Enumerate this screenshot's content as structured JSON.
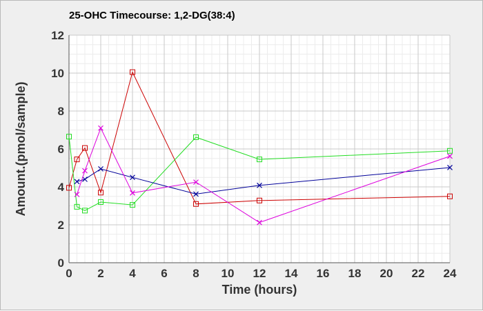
{
  "chart_data": {
    "type": "line",
    "title": "25-OHC Timecourse: 1,2-DG(38:4)",
    "xlabel": "Time (hours)",
    "ylabel": "Amount.(pmol/sample)",
    "xlim": [
      0,
      24
    ],
    "ylim": [
      0,
      12
    ],
    "x_ticks": [
      0,
      2,
      4,
      6,
      8,
      10,
      12,
      14,
      16,
      18,
      20,
      22,
      24
    ],
    "y_ticks": [
      0,
      2,
      4,
      6,
      8,
      10,
      12
    ],
    "x_minor_step": 0.5,
    "y_minor_step": 0.5,
    "grid": true,
    "legend": "none",
    "series": [
      {
        "color": "#cc0000",
        "marker": "square",
        "x": [
          0,
          0.5,
          1,
          2,
          4,
          8,
          12,
          24
        ],
        "values": [
          3.95,
          5.45,
          6.05,
          3.7,
          10.05,
          3.1,
          3.28,
          3.5
        ]
      },
      {
        "color": "#22dd22",
        "marker": "square",
        "x": [
          0,
          0.5,
          1,
          2,
          4,
          8,
          12,
          24
        ],
        "values": [
          6.65,
          2.95,
          2.75,
          3.2,
          3.05,
          6.62,
          5.45,
          5.9
        ]
      },
      {
        "color": "#000099",
        "marker": "x",
        "x": [
          0.5,
          1,
          2,
          4,
          8,
          12,
          24
        ],
        "values": [
          4.28,
          4.4,
          4.95,
          4.5,
          3.62,
          4.08,
          5.02
        ]
      },
      {
        "color": "#dd00dd",
        "marker": "x",
        "x": [
          0.5,
          1,
          2,
          4,
          8,
          12,
          24
        ],
        "values": [
          3.6,
          4.85,
          7.1,
          3.68,
          4.25,
          2.12,
          5.62
        ]
      }
    ]
  }
}
